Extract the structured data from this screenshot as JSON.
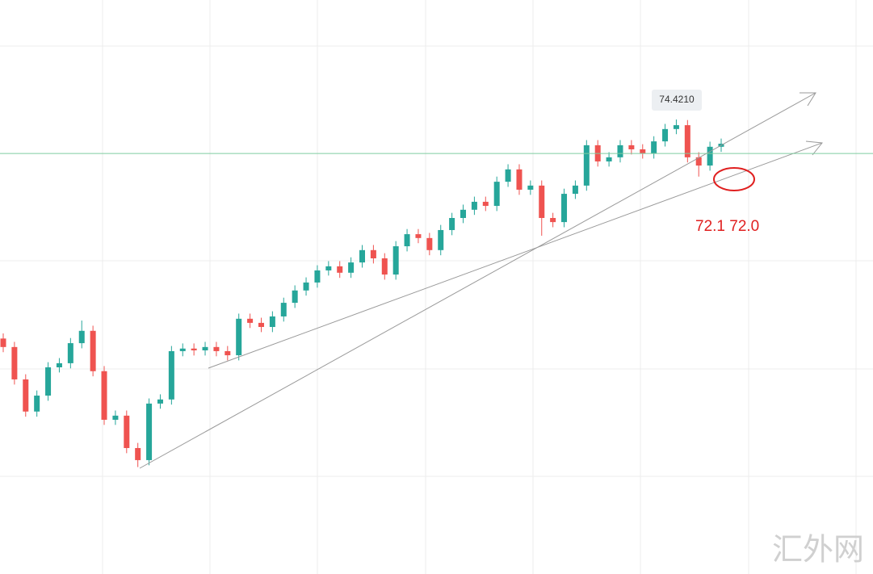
{
  "chart_data": {
    "type": "candlestick",
    "ylim": [
      56.74,
      79.07
    ],
    "up_color": "#26a69a",
    "down_color": "#ef5350",
    "open": [
      65.9,
      65.57,
      64.31,
      63.06,
      63.68,
      64.78,
      64.94,
      65.72,
      66.2,
      64.63,
      62.74,
      62.9,
      61.64,
      61.17,
      63.37,
      63.53,
      65.41,
      65.51,
      65.44,
      65.57,
      65.41,
      65.25,
      66.67,
      66.51,
      66.35,
      66.76,
      67.29,
      67.77,
      68.08,
      68.55,
      68.71,
      68.46,
      68.86,
      69.34,
      69.02,
      68.39,
      69.49,
      69.96,
      69.81,
      69.34,
      70.12,
      70.59,
      70.91,
      71.22,
      71.06,
      72.0,
      72.48,
      71.69,
      71.85,
      70.59,
      70.43,
      71.53,
      71.85,
      73.42,
      72.79,
      72.95,
      73.42,
      73.26,
      73.1,
      73.57,
      74.05,
      74.2,
      72.95,
      72.63,
      73.36
    ],
    "high": [
      66.1,
      65.77,
      64.51,
      63.88,
      64.98,
      65.14,
      65.92,
      66.6,
      66.4,
      64.83,
      63.1,
      63.1,
      61.84,
      63.57,
      63.73,
      65.61,
      65.71,
      65.71,
      65.77,
      65.77,
      65.61,
      66.87,
      66.87,
      66.71,
      66.96,
      67.49,
      67.97,
      68.28,
      68.75,
      68.91,
      68.91,
      69.06,
      69.54,
      69.54,
      69.22,
      69.69,
      70.16,
      70.16,
      70.01,
      70.32,
      70.79,
      71.11,
      71.42,
      71.42,
      72.2,
      72.68,
      72.68,
      72.05,
      72.05,
      70.79,
      71.73,
      72.05,
      73.62,
      73.62,
      73.15,
      73.62,
      73.62,
      73.46,
      73.77,
      74.25,
      74.421,
      74.4,
      73.15,
      73.56,
      73.68
    ],
    "low": [
      65.37,
      64.11,
      62.86,
      62.86,
      63.48,
      64.58,
      64.74,
      65.52,
      64.43,
      62.54,
      62.54,
      61.44,
      60.9,
      60.97,
      63.17,
      63.33,
      65.21,
      65.24,
      65.24,
      65.21,
      65.05,
      65.05,
      66.31,
      66.15,
      66.15,
      66.56,
      67.09,
      67.57,
      67.88,
      68.35,
      68.26,
      68.26,
      68.66,
      68.82,
      68.19,
      68.19,
      69.29,
      69.61,
      69.14,
      69.14,
      69.92,
      70.39,
      70.71,
      70.86,
      70.86,
      71.8,
      71.49,
      71.49,
      69.9,
      70.23,
      70.23,
      71.33,
      71.65,
      72.59,
      72.59,
      72.75,
      73.06,
      72.9,
      72.9,
      73.37,
      73.85,
      72.75,
      72.2,
      72.43,
      73.16
    ],
    "close": [
      65.57,
      64.31,
      63.06,
      63.68,
      64.78,
      64.94,
      65.72,
      66.2,
      64.63,
      62.74,
      62.9,
      61.64,
      61.17,
      63.37,
      63.53,
      65.41,
      65.51,
      65.44,
      65.57,
      65.41,
      65.25,
      66.67,
      66.51,
      66.35,
      66.76,
      67.29,
      67.77,
      68.08,
      68.55,
      68.71,
      68.46,
      68.86,
      69.34,
      69.02,
      68.39,
      69.49,
      69.96,
      69.81,
      69.34,
      70.12,
      70.59,
      70.91,
      71.22,
      71.06,
      72.0,
      72.48,
      71.69,
      71.85,
      70.59,
      70.43,
      71.53,
      71.85,
      73.42,
      72.79,
      72.95,
      73.42,
      73.26,
      73.1,
      73.57,
      74.05,
      74.2,
      72.95,
      72.63,
      73.36,
      73.48
    ],
    "hline": 73.1,
    "price_tag": {
      "value": 74.421,
      "label": "74.4210"
    },
    "annotation": "72.1 72.0",
    "watermark": "汇外网"
  }
}
